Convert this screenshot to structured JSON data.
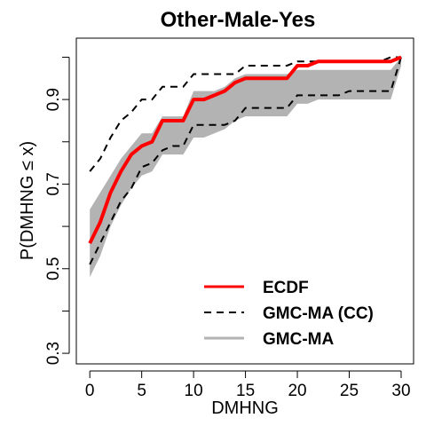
{
  "chart_data": {
    "type": "line",
    "title": "Other-Male-Yes",
    "xlabel": "DMHNG",
    "ylabel": "P(DMHNG ≤ x)",
    "xlim": [
      -1.3,
      31.2
    ],
    "ylim": [
      0.275,
      1.045
    ],
    "x_ticks": [
      0,
      5,
      10,
      15,
      20,
      25,
      30
    ],
    "x_tick_labels": [
      "0",
      "5",
      "10",
      "15",
      "20",
      "25",
      "30"
    ],
    "y_ticks": [
      0.3,
      0.4,
      0.5,
      0.6,
      0.7,
      0.8,
      0.9,
      1.0
    ],
    "y_tick_labels": [
      "0.3",
      "",
      "0.5",
      "",
      "0.7",
      "",
      "0.9",
      ""
    ],
    "grid": false,
    "legend_position": "bottom-right",
    "legend": [
      {
        "label": "ECDF",
        "style": "solid",
        "color": "#ff0000"
      },
      {
        "label": "GMC-MA (CC)",
        "style": "dashed",
        "color": "#000000"
      },
      {
        "label": "GMC-MA",
        "style": "solid",
        "color": "#b3b3b3"
      }
    ],
    "series": [
      {
        "name": "ECDF",
        "color": "#ff0000",
        "x": [
          0,
          1,
          2,
          3,
          4,
          5,
          6,
          7,
          8,
          9,
          10,
          11,
          12,
          13,
          14,
          15,
          16,
          17,
          18,
          19,
          20,
          21,
          22,
          23,
          24,
          25,
          26,
          27,
          28,
          29,
          30
        ],
        "y": [
          0.56,
          0.61,
          0.68,
          0.73,
          0.77,
          0.79,
          0.8,
          0.85,
          0.85,
          0.85,
          0.9,
          0.9,
          0.91,
          0.92,
          0.94,
          0.95,
          0.95,
          0.95,
          0.95,
          0.95,
          0.98,
          0.98,
          0.99,
          0.99,
          0.99,
          0.99,
          0.99,
          0.99,
          0.99,
          0.99,
          1.0
        ]
      },
      {
        "name": "GMC-MA (CC) upper",
        "color": "#000000",
        "x": [
          0,
          1,
          2,
          3,
          4,
          5,
          6,
          7,
          8,
          9,
          10,
          11,
          12,
          13,
          14,
          15,
          16,
          17,
          18,
          19,
          20,
          21,
          22,
          23,
          24,
          25,
          26,
          27,
          28,
          29,
          30
        ],
        "y": [
          0.73,
          0.76,
          0.81,
          0.85,
          0.87,
          0.9,
          0.9,
          0.93,
          0.93,
          0.93,
          0.96,
          0.96,
          0.96,
          0.96,
          0.96,
          0.98,
          0.98,
          0.98,
          0.98,
          0.98,
          0.99,
          0.99,
          0.99,
          0.99,
          0.99,
          0.99,
          0.99,
          0.99,
          0.99,
          1.0,
          1.0
        ]
      },
      {
        "name": "GMC-MA (CC) lower",
        "color": "#000000",
        "x": [
          0,
          1,
          2,
          3,
          4,
          5,
          6,
          7,
          8,
          9,
          10,
          11,
          12,
          13,
          14,
          15,
          16,
          17,
          18,
          19,
          20,
          21,
          22,
          23,
          24,
          25,
          26,
          27,
          28,
          29,
          30
        ],
        "y": [
          0.51,
          0.56,
          0.61,
          0.66,
          0.69,
          0.74,
          0.75,
          0.78,
          0.79,
          0.79,
          0.84,
          0.84,
          0.84,
          0.84,
          0.85,
          0.88,
          0.88,
          0.88,
          0.88,
          0.88,
          0.91,
          0.91,
          0.91,
          0.91,
          0.91,
          0.92,
          0.92,
          0.92,
          0.92,
          0.92,
          1.0
        ]
      },
      {
        "name": "GMC-MA upper",
        "color": "#b3b3b3",
        "x": [
          0,
          1,
          2,
          3,
          4,
          5,
          6,
          7,
          8,
          9,
          10,
          11,
          12,
          13,
          14,
          15,
          16,
          17,
          18,
          19,
          20,
          21,
          22,
          23,
          24,
          25,
          26,
          27,
          28,
          29,
          30
        ],
        "y": [
          0.64,
          0.68,
          0.72,
          0.76,
          0.79,
          0.82,
          0.82,
          0.86,
          0.86,
          0.86,
          0.92,
          0.92,
          0.92,
          0.93,
          0.95,
          0.96,
          0.96,
          0.96,
          0.96,
          0.96,
          0.97,
          0.97,
          0.97,
          0.97,
          0.97,
          0.97,
          0.97,
          0.97,
          0.97,
          0.97,
          1.0
        ]
      },
      {
        "name": "GMC-MA lower",
        "color": "#b3b3b3",
        "x": [
          0,
          1,
          2,
          3,
          4,
          5,
          6,
          7,
          8,
          9,
          10,
          11,
          12,
          13,
          14,
          15,
          16,
          17,
          18,
          19,
          20,
          21,
          22,
          23,
          24,
          25,
          26,
          27,
          28,
          29,
          30
        ],
        "y": [
          0.48,
          0.53,
          0.6,
          0.65,
          0.69,
          0.72,
          0.73,
          0.77,
          0.77,
          0.77,
          0.81,
          0.81,
          0.82,
          0.83,
          0.85,
          0.86,
          0.86,
          0.86,
          0.86,
          0.86,
          0.89,
          0.89,
          0.9,
          0.9,
          0.9,
          0.9,
          0.9,
          0.9,
          0.9,
          0.9,
          0.98
        ]
      }
    ]
  }
}
